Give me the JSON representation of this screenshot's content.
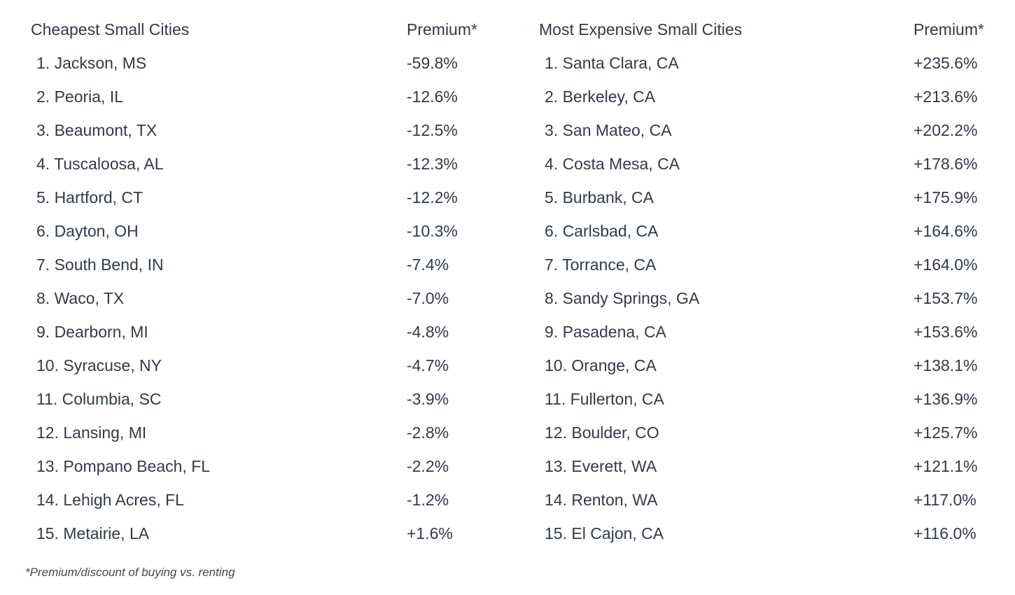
{
  "cheapest": {
    "header_name": "Cheapest Small Cities",
    "header_value": "Premium*",
    "rows": [
      {
        "name": "1. Jackson, MS",
        "value": "-59.8%"
      },
      {
        "name": "2. Peoria, IL",
        "value": "-12.6%"
      },
      {
        "name": "3. Beaumont, TX",
        "value": "-12.5%"
      },
      {
        "name": "4. Tuscaloosa, AL",
        "value": "-12.3%"
      },
      {
        "name": "5. Hartford, CT",
        "value": "-12.2%"
      },
      {
        "name": "6. Dayton, OH",
        "value": "-10.3%"
      },
      {
        "name": "7. South Bend, IN",
        "value": "-7.4%"
      },
      {
        "name": "8. Waco, TX",
        "value": "-7.0%"
      },
      {
        "name": "9. Dearborn, MI",
        "value": "-4.8%"
      },
      {
        "name": "10. Syracuse, NY",
        "value": "-4.7%"
      },
      {
        "name": "11. Columbia, SC",
        "value": "-3.9%"
      },
      {
        "name": "12. Lansing, MI",
        "value": "-2.8%"
      },
      {
        "name": "13. Pompano Beach, FL",
        "value": "-2.2%"
      },
      {
        "name": "14. Lehigh Acres, FL",
        "value": "-1.2%"
      },
      {
        "name": "15. Metairie, LA",
        "value": "+1.6%"
      }
    ]
  },
  "expensive": {
    "header_name": "Most Expensive Small Cities",
    "header_value": "Premium*",
    "rows": [
      {
        "name": "1. Santa Clara, CA",
        "value": "+235.6%"
      },
      {
        "name": "2. Berkeley, CA",
        "value": "+213.6%"
      },
      {
        "name": "3. San Mateo, CA",
        "value": "+202.2%"
      },
      {
        "name": "4. Costa Mesa, CA",
        "value": "+178.6%"
      },
      {
        "name": "5. Burbank, CA",
        "value": "+175.9%"
      },
      {
        "name": "6. Carlsbad, CA",
        "value": "+164.6%"
      },
      {
        "name": "7. Torrance, CA",
        "value": "+164.0%"
      },
      {
        "name": "8. Sandy Springs, GA",
        "value": "+153.7%"
      },
      {
        "name": "9. Pasadena, CA",
        "value": "+153.6%"
      },
      {
        "name": "10. Orange, CA",
        "value": "+138.1%"
      },
      {
        "name": "11. Fullerton, CA",
        "value": "+136.9%"
      },
      {
        "name": "12. Boulder, CO",
        "value": "+125.7%"
      },
      {
        "name": "13. Everett, WA",
        "value": "+121.1%"
      },
      {
        "name": "14. Renton, WA",
        "value": "+117.0%"
      },
      {
        "name": "15. El Cajon, CA",
        "value": "+116.0%"
      }
    ]
  },
  "footnote": "*Premium/discount of buying vs. renting",
  "colors": {
    "text": "#2f3b4c",
    "background": "#ffffff"
  }
}
